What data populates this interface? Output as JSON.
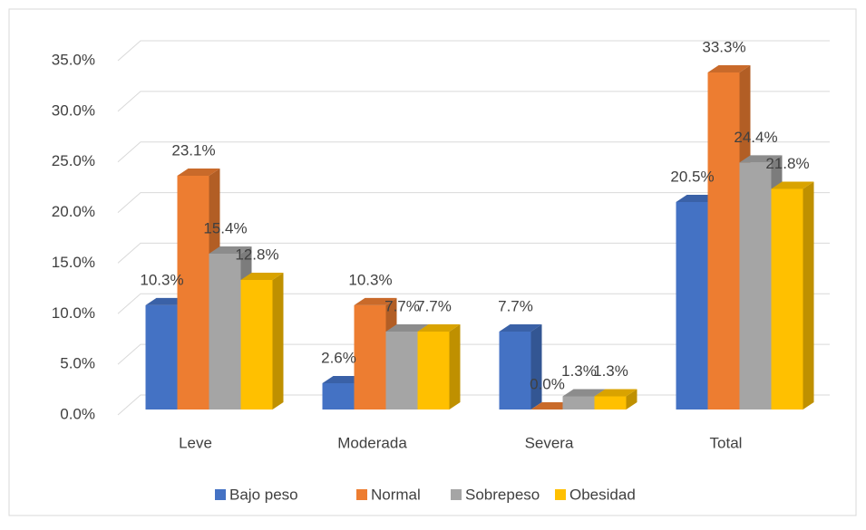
{
  "chart_data": {
    "type": "bar3d",
    "categories": [
      "Leve",
      "Moderada",
      "Severa",
      "Total"
    ],
    "series": [
      {
        "name": "Bajo peso",
        "color": "#4472c4",
        "values": [
          10.3,
          2.6,
          7.7,
          20.5
        ],
        "value_labels": [
          "10.3%",
          "2.6%",
          "7.7%",
          "20.5%"
        ]
      },
      {
        "name": "Normal",
        "color": "#ed7d31",
        "values": [
          23.1,
          10.3,
          0.0,
          33.3
        ],
        "value_labels": [
          "23.1%",
          "10.3%",
          "0.0%",
          "33.3%"
        ]
      },
      {
        "name": "Sobrepeso",
        "color": "#a5a5a5",
        "values": [
          15.4,
          7.7,
          1.3,
          24.4
        ],
        "value_labels": [
          "15.4%",
          "7.7%",
          "1.3%",
          "24.4%"
        ]
      },
      {
        "name": "Obesidad",
        "color": "#ffc000",
        "values": [
          12.8,
          7.7,
          1.3,
          21.8
        ],
        "value_labels": [
          "12.8%",
          "7.7%",
          "1.3%",
          "21.8%"
        ]
      }
    ],
    "ylim": [
      0,
      35
    ],
    "yticks": [
      {
        "value": 0,
        "label": "0.0%"
      },
      {
        "value": 5,
        "label": "5.0%"
      },
      {
        "value": 10,
        "label": "10.0%"
      },
      {
        "value": 15,
        "label": "15.0%"
      },
      {
        "value": 20,
        "label": "20.0%"
      },
      {
        "value": 25,
        "label": "25.0%"
      },
      {
        "value": 30,
        "label": "30.0%"
      },
      {
        "value": 35,
        "label": "35.0%"
      }
    ],
    "grid": true,
    "legend": "bottom"
  }
}
